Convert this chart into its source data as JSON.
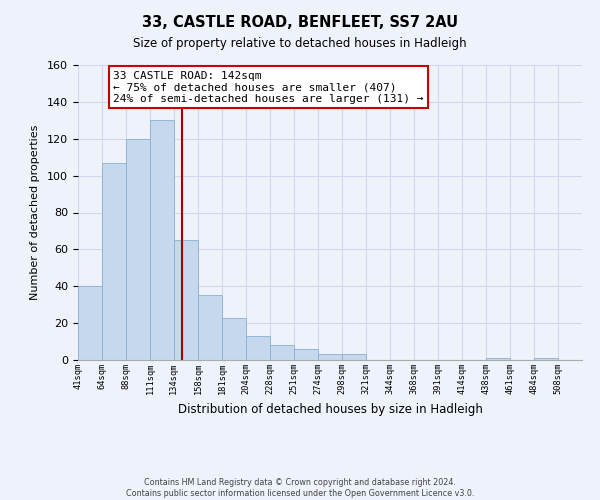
{
  "title": "33, CASTLE ROAD, BENFLEET, SS7 2AU",
  "subtitle": "Size of property relative to detached houses in Hadleigh",
  "xlabel": "Distribution of detached houses by size in Hadleigh",
  "ylabel": "Number of detached properties",
  "bar_left_edges": [
    41,
    64,
    88,
    111,
    134,
    158,
    181,
    204,
    228,
    251,
    274,
    298,
    321,
    344,
    368,
    391,
    414,
    438,
    461,
    484
  ],
  "bar_widths": [
    23,
    24,
    23,
    23,
    24,
    23,
    23,
    24,
    23,
    23,
    24,
    23,
    23,
    24,
    23,
    23,
    24,
    23,
    23,
    24
  ],
  "bar_heights": [
    40,
    107,
    120,
    130,
    65,
    35,
    23,
    13,
    8,
    6,
    3,
    3,
    0,
    0,
    0,
    0,
    0,
    1,
    0,
    1
  ],
  "tick_labels": [
    "41sqm",
    "64sqm",
    "88sqm",
    "111sqm",
    "134sqm",
    "158sqm",
    "181sqm",
    "204sqm",
    "228sqm",
    "251sqm",
    "274sqm",
    "298sqm",
    "321sqm",
    "344sqm",
    "368sqm",
    "391sqm",
    "414sqm",
    "438sqm",
    "461sqm",
    "484sqm",
    "508sqm"
  ],
  "tick_positions": [
    41,
    64,
    88,
    111,
    134,
    158,
    181,
    204,
    228,
    251,
    274,
    298,
    321,
    344,
    368,
    391,
    414,
    438,
    461,
    484,
    508
  ],
  "bar_color": "#c5d8ee",
  "bar_edge_color": "#8ab0d0",
  "vline_x": 142,
  "vline_color": "#aa0000",
  "annotation_text_line1": "33 CASTLE ROAD: 142sqm",
  "annotation_text_line2": "← 75% of detached houses are smaller (407)",
  "annotation_text_line3": "24% of semi-detached houses are larger (131) →",
  "box_edge_color": "#cc0000",
  "ylim": [
    0,
    160
  ],
  "xlim": [
    41,
    531
  ],
  "footer_line1": "Contains HM Land Registry data © Crown copyright and database right 2024.",
  "footer_line2": "Contains public sector information licensed under the Open Government Licence v3.0.",
  "grid_color": "#d0d8ee",
  "bg_color": "#eef2fa"
}
